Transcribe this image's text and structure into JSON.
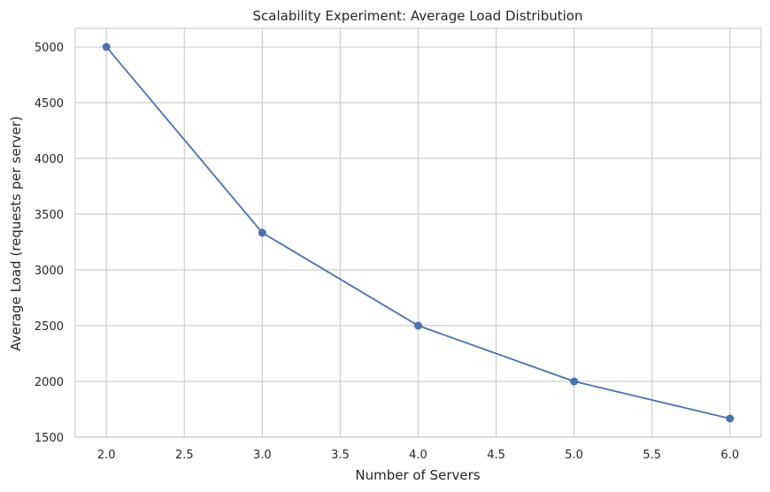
{
  "chart_data": {
    "type": "line",
    "title": "Scalability Experiment: Average Load Distribution",
    "xlabel": "Number of Servers",
    "ylabel": "Average Load (requests per server)",
    "x": [
      2,
      3,
      4,
      5,
      6
    ],
    "series": [
      {
        "values": [
          5000,
          3333.33,
          2500,
          2000,
          1666.67
        ],
        "color": "#4c72b0"
      }
    ],
    "xlim": [
      1.8,
      6.2
    ],
    "ylim": [
      1500,
      5167
    ],
    "xticks": [
      2.0,
      2.5,
      3.0,
      3.5,
      4.0,
      4.5,
      5.0,
      5.5,
      6.0
    ],
    "xtick_labels": [
      "2.0",
      "2.5",
      "3.0",
      "3.5",
      "4.0",
      "4.5",
      "5.0",
      "5.5",
      "6.0"
    ],
    "yticks": [
      1500,
      2000,
      2500,
      3000,
      3500,
      4000,
      4500,
      5000
    ],
    "ytick_labels": [
      "1500",
      "2000",
      "2500",
      "3000",
      "3500",
      "4000",
      "4500",
      "5000"
    ],
    "grid": true,
    "marker": "circle"
  }
}
